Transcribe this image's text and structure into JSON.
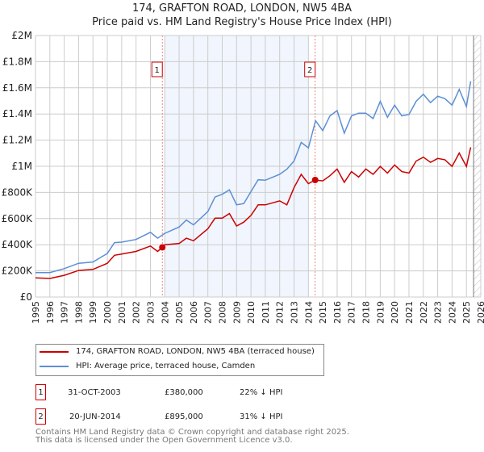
{
  "chart_data": {
    "type": "line",
    "title": "174, GRAFTON ROAD, LONDON, NW5 4BA",
    "subtitle": "Price paid vs. HM Land Registry's House Price Index (HPI)",
    "xlim": [
      1995,
      2026
    ],
    "ylim": [
      0,
      2000000
    ],
    "grid": true,
    "x_ticks": [
      "1995",
      "1996",
      "1997",
      "1998",
      "1999",
      "2000",
      "2001",
      "2002",
      "2003",
      "2004",
      "2005",
      "2006",
      "2007",
      "2008",
      "2009",
      "2010",
      "2011",
      "2012",
      "2013",
      "2014",
      "2015",
      "2016",
      "2017",
      "2018",
      "2019",
      "2020",
      "2021",
      "2022",
      "2023",
      "2024",
      "2025",
      "2026"
    ],
    "y_ticks": [
      {
        "v": 0,
        "label": "£0"
      },
      {
        "v": 200000,
        "label": "£200K"
      },
      {
        "v": 400000,
        "label": "£400K"
      },
      {
        "v": 600000,
        "label": "£600K"
      },
      {
        "v": 800000,
        "label": "£800K"
      },
      {
        "v": 1000000,
        "label": "£1M"
      },
      {
        "v": 1200000,
        "label": "£1.2M"
      },
      {
        "v": 1400000,
        "label": "£1.4M"
      },
      {
        "v": 1600000,
        "label": "£1.6M"
      },
      {
        "v": 1800000,
        "label": "£1.8M"
      },
      {
        "v": 2000000,
        "label": "£2M"
      }
    ],
    "shaded_range": [
      2004.0,
      2014.0
    ],
    "forecast_hatch_from": 2025.5,
    "series": [
      {
        "name": "174, GRAFTON ROAD, LONDON, NW5 4BA (terraced house)",
        "color": "#cc0000",
        "x": [
          1995,
          1996,
          1997,
          1998,
          1999,
          2000,
          2000.5,
          2001,
          2002,
          2003,
          2003.5,
          2003.83,
          2004,
          2005,
          2005.5,
          2006,
          2007,
          2007.5,
          2008,
          2008.5,
          2009,
          2009.5,
          2010,
          2010.5,
          2011,
          2012,
          2012.5,
          2013,
          2013.5,
          2014,
          2014.47,
          2015,
          2015.5,
          2016,
          2016.5,
          2017,
          2017.5,
          2018,
          2018.5,
          2019,
          2019.5,
          2020,
          2020.5,
          2021,
          2021.5,
          2022,
          2022.5,
          2023,
          2023.5,
          2024,
          2024.5,
          2025,
          2025.3
        ],
        "y": [
          146000,
          142000,
          166000,
          203000,
          211000,
          258000,
          319000,
          329000,
          349000,
          390000,
          349000,
          380000,
          400000,
          410000,
          450000,
          430000,
          522000,
          603000,
          603000,
          638000,
          543000,
          573000,
          624000,
          705000,
          705000,
          735000,
          705000,
          837000,
          938000,
          867000,
          895000,
          888000,
          928000,
          979000,
          877000,
          959000,
          918000,
          979000,
          938000,
          999000,
          948000,
          1010000,
          959000,
          948000,
          1040000,
          1070000,
          1030000,
          1060000,
          1050000,
          999000,
          1101000,
          999000,
          1145000
        ]
      },
      {
        "name": "HPI: Average price, terraced house, Camden",
        "color": "#5b8fd4",
        "x": [
          1995,
          1996,
          1997,
          1998,
          1999,
          2000,
          2000.5,
          2001,
          2002,
          2003,
          2003.5,
          2004,
          2005,
          2005.5,
          2006,
          2007,
          2007.5,
          2008,
          2008.5,
          2009,
          2009.5,
          2010,
          2010.5,
          2011,
          2012,
          2012.5,
          2013,
          2013.5,
          2014,
          2014.5,
          2015,
          2015.5,
          2016,
          2016.5,
          2017,
          2017.5,
          2018,
          2018.5,
          2019,
          2019.5,
          2020,
          2020.5,
          2021,
          2021.5,
          2022,
          2022.5,
          2023,
          2023.5,
          2024,
          2024.5,
          2025,
          2025.3
        ],
        "y": [
          187000,
          187000,
          217000,
          258000,
          268000,
          333000,
          416000,
          420000,
          440000,
          495000,
          450000,
          487000,
          536000,
          589000,
          552000,
          654000,
          765000,
          786000,
          820000,
          705000,
          715000,
          806000,
          897000,
          893000,
          938000,
          978000,
          1040000,
          1182000,
          1141000,
          1348000,
          1273000,
          1385000,
          1426000,
          1253000,
          1385000,
          1406000,
          1406000,
          1365000,
          1497000,
          1375000,
          1467000,
          1385000,
          1396000,
          1497000,
          1551000,
          1487000,
          1536000,
          1517000,
          1467000,
          1588000,
          1457000,
          1650000
        ]
      }
    ],
    "annotations": [
      {
        "label": "1",
        "x": 2003.83,
        "y": 380000
      },
      {
        "label": "2",
        "x": 2014.47,
        "y": 895000
      }
    ]
  },
  "legend": {
    "red_label": "174, GRAFTON ROAD, LONDON, NW5 4BA (terraced house)",
    "blue_label": "HPI: Average price, terraced house, Camden"
  },
  "sales": [
    {
      "num": "1",
      "date": "31-OCT-2003",
      "price": "£380,000",
      "hpi": "22% ↓ HPI"
    },
    {
      "num": "2",
      "date": "20-JUN-2014",
      "price": "£895,000",
      "hpi": "31% ↓ HPI"
    }
  ],
  "footer": {
    "line1": "Contains HM Land Registry data © Crown copyright and database right 2025.",
    "line2": "This data is licensed under the Open Government Licence v3.0."
  }
}
